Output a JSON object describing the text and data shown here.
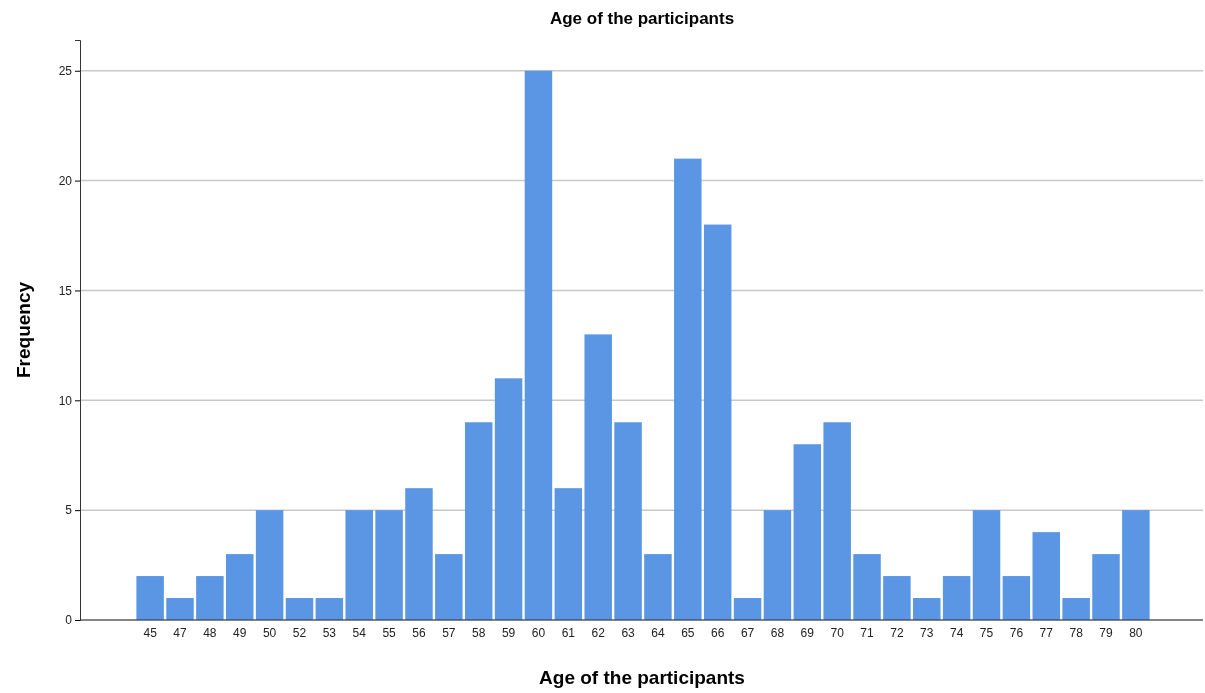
{
  "chart_data": {
    "type": "bar",
    "title": "Age of the participants",
    "xlabel": "Age of the participants",
    "ylabel": "Frequency",
    "categories": [
      "45",
      "47",
      "48",
      "49",
      "50",
      "52",
      "53",
      "54",
      "55",
      "56",
      "57",
      "58",
      "59",
      "60",
      "61",
      "62",
      "63",
      "64",
      "65",
      "66",
      "67",
      "68",
      "69",
      "70",
      "71",
      "72",
      "73",
      "74",
      "75",
      "76",
      "77",
      "78",
      "79",
      "80"
    ],
    "values": [
      2,
      1,
      2,
      3,
      5,
      1,
      1,
      5,
      5,
      6,
      3,
      9,
      11,
      25,
      6,
      13,
      9,
      3,
      21,
      18,
      1,
      5,
      8,
      9,
      3,
      2,
      1,
      2,
      5,
      2,
      4,
      1,
      3,
      5
    ],
    "color": "#5a96e3",
    "ylim": [
      0,
      26.4
    ],
    "yticks": [
      0,
      5,
      10,
      15,
      20,
      25
    ],
    "grid": "y"
  }
}
